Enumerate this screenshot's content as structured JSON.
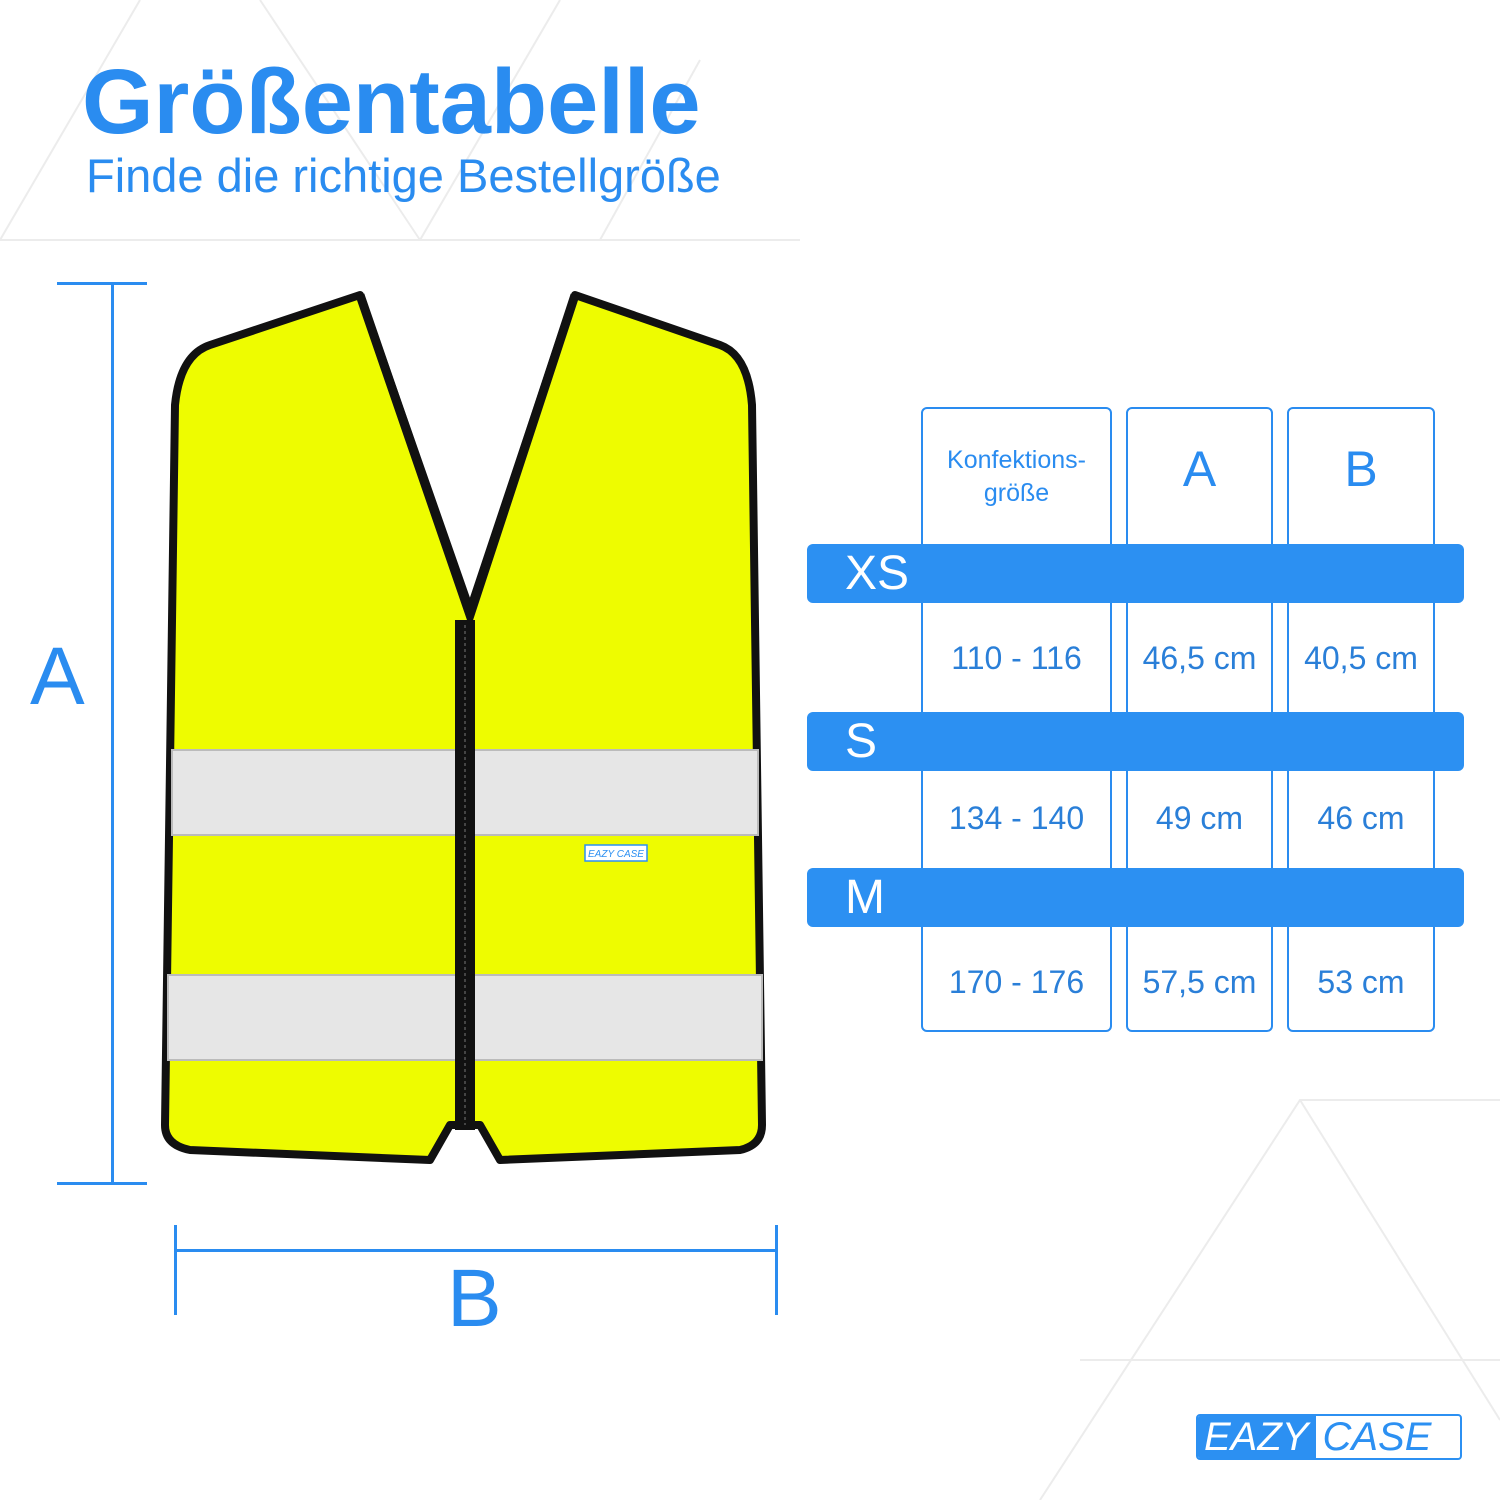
{
  "header": {
    "title": "Größentabelle",
    "subtitle": "Finde die richtige Bestellgröße"
  },
  "dimensions": {
    "a_label": "A",
    "b_label": "B"
  },
  "table": {
    "columns": [
      "Konfektions-",
      "größe",
      "A",
      "B"
    ],
    "header": {
      "size_line1": "Konfektions-",
      "size_line2": "größe",
      "a": "A",
      "b": "B"
    },
    "rows": [
      {
        "size": "XS",
        "konfektionsgroesse": "110 - 116",
        "a": "46,5 cm",
        "b": "40,5 cm"
      },
      {
        "size": "S",
        "konfektionsgroesse": "134 - 140",
        "a": "49 cm",
        "b": "46 cm"
      },
      {
        "size": "M",
        "konfektionsgroesse": "170 - 176",
        "a": "57,5 cm",
        "b": "53 cm"
      }
    ]
  },
  "product": {
    "label_text": "EAZY CASE"
  },
  "logo": {
    "part1": "EAZY",
    "part2": "CASE"
  },
  "colors": {
    "accent": "#2c90f2",
    "vest": "#eefc00",
    "trim": "#111111",
    "reflective": "#e8e8e8"
  }
}
